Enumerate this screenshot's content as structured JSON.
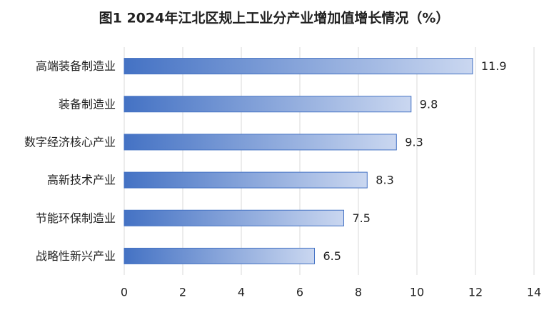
{
  "chart_data": {
    "type": "bar",
    "orientation": "horizontal",
    "title": "图1 2024年江北区规上工业分产业增加值增长情况（%）",
    "categories": [
      "高端装备制造业",
      "装备制造业",
      "数字经济核心产业",
      "高新技术产业",
      "节能环保制造业",
      "战略性新兴产业"
    ],
    "values": [
      11.9,
      9.8,
      9.3,
      8.3,
      7.5,
      6.5
    ],
    "color": "#4472c4",
    "xlim": [
      0,
      14
    ],
    "xticks": [
      0,
      2,
      4,
      6,
      8,
      10,
      12,
      14
    ],
    "grid": true
  }
}
